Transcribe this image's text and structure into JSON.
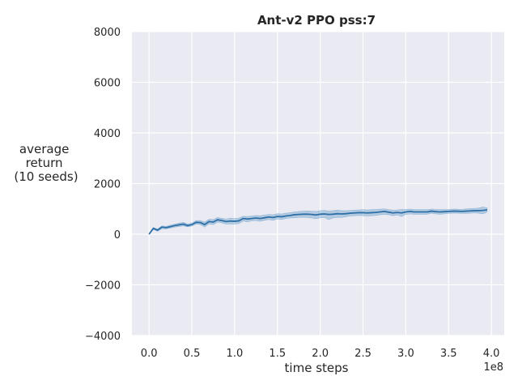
{
  "chart_data": {
    "type": "line",
    "title": "Ant-v2 PPO pss:7",
    "xlabel": "time steps",
    "ylabel_lines": [
      "average",
      "return",
      "(10 seeds)"
    ],
    "x_offset_text": "1e8",
    "xlim": [
      -0.2,
      4.15
    ],
    "ylim": [
      -4000,
      8000
    ],
    "xticks": [
      0.0,
      0.5,
      1.0,
      1.5,
      2.0,
      2.5,
      3.0,
      3.5,
      4.0
    ],
    "xtick_labels": [
      "0.0",
      "0.5",
      "1.0",
      "1.5",
      "2.0",
      "2.5",
      "3.0",
      "3.5",
      "4.0"
    ],
    "yticks": [
      -4000,
      -2000,
      0,
      2000,
      4000,
      6000,
      8000
    ],
    "ytick_labels": [
      "−4000",
      "−2000",
      "0",
      "2000",
      "4000",
      "6000",
      "8000"
    ],
    "grid": true,
    "colors": {
      "background": "#eaeaf2",
      "grid": "#ffffff",
      "line": "#2d6fa6",
      "band": "#4c8fc4"
    },
    "series": [
      {
        "x": [
          0.0,
          0.05,
          0.1,
          0.15,
          0.2,
          0.25,
          0.3,
          0.35,
          0.4,
          0.45,
          0.5,
          0.55,
          0.6,
          0.65,
          0.7,
          0.75,
          0.8,
          0.85,
          0.9,
          0.95,
          1.0,
          1.05,
          1.1,
          1.15,
          1.2,
          1.25,
          1.3,
          1.35,
          1.4,
          1.45,
          1.5,
          1.55,
          1.6,
          1.65,
          1.7,
          1.75,
          1.8,
          1.85,
          1.9,
          1.95,
          2.0,
          2.05,
          2.1,
          2.15,
          2.2,
          2.25,
          2.3,
          2.35,
          2.4,
          2.45,
          2.5,
          2.55,
          2.6,
          2.65,
          2.7,
          2.75,
          2.8,
          2.85,
          2.9,
          2.95,
          3.0,
          3.05,
          3.1,
          3.15,
          3.2,
          3.25,
          3.3,
          3.35,
          3.4,
          3.45,
          3.5,
          3.55,
          3.6,
          3.65,
          3.7,
          3.75,
          3.8,
          3.85,
          3.9,
          3.95
        ],
        "mean": [
          0,
          230,
          160,
          280,
          260,
          300,
          340,
          370,
          400,
          340,
          380,
          470,
          460,
          380,
          500,
          480,
          570,
          540,
          500,
          520,
          510,
          530,
          620,
          600,
          620,
          640,
          620,
          650,
          680,
          660,
          700,
          690,
          720,
          740,
          770,
          780,
          790,
          790,
          780,
          760,
          790,
          800,
          780,
          790,
          810,
          800,
          810,
          830,
          840,
          850,
          850,
          840,
          850,
          860,
          880,
          900,
          870,
          840,
          860,
          840,
          880,
          900,
          880,
          880,
          880,
          880,
          910,
          890,
          880,
          890,
          900,
          910,
          910,
          900,
          910,
          920,
          930,
          930,
          940,
          960
        ],
        "lower": [
          0,
          190,
          120,
          220,
          210,
          240,
          280,
          300,
          330,
          290,
          320,
          400,
          380,
          280,
          410,
          380,
          480,
          450,
          400,
          410,
          400,
          420,
          520,
          490,
          530,
          540,
          510,
          550,
          580,
          550,
          600,
          580,
          620,
          640,
          650,
          660,
          670,
          660,
          640,
          610,
          650,
          660,
          580,
          640,
          670,
          660,
          690,
          720,
          730,
          740,
          730,
          720,
          730,
          740,
          770,
          790,
          770,
          730,
          760,
          700,
          780,
          800,
          790,
          790,
          790,
          790,
          830,
          800,
          790,
          800,
          820,
          830,
          830,
          820,
          820,
          830,
          840,
          830,
          800,
          880
        ],
        "upper": [
          0,
          270,
          200,
          330,
          310,
          360,
          400,
          440,
          470,
          400,
          440,
          540,
          540,
          480,
          590,
          580,
          660,
          630,
          600,
          630,
          620,
          640,
          710,
          700,
          720,
          740,
          730,
          760,
          780,
          770,
          810,
          800,
          830,
          850,
          880,
          900,
          910,
          920,
          910,
          900,
          930,
          940,
          920,
          930,
          950,
          930,
          930,
          940,
          950,
          960,
          970,
          960,
          970,
          980,
          990,
          1000,
          970,
          950,
          960,
          980,
          980,
          990,
          970,
          970,
          970,
          970,
          990,
          980,
          970,
          980,
          980,
          990,
          990,
          980,
          1000,
          1010,
          1020,
          1030,
          1080,
          1040
        ]
      }
    ]
  }
}
